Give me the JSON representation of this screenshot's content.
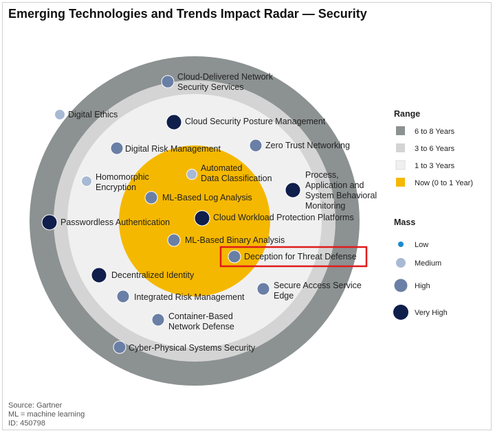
{
  "title": "Emerging Technologies and Trends Impact Radar — Security",
  "colors": {
    "ring_6_8": "#8c9191",
    "ring_3_6": "#d4d4d4",
    "ring_1_3": "#f0f0f0",
    "ring_now": "#f5b800",
    "mass_low": "#1b8ad1",
    "mass_medium": "#a8b9d4",
    "mass_high": "#6a7fa6",
    "mass_very_high": "#0f1e4b",
    "highlight": "#e01b1b"
  },
  "technologies": [
    {
      "label": [
        "Cloud-Delivered Network",
        "Security Services"
      ],
      "mass": "high"
    },
    {
      "label": [
        "Digital Ethics"
      ],
      "mass": "medium"
    },
    {
      "label": [
        "Cloud Security Posture Management"
      ],
      "mass": "very_high"
    },
    {
      "label": [
        "Digital Risk Management"
      ],
      "mass": "high"
    },
    {
      "label": [
        "Zero Trust Networking"
      ],
      "mass": "high"
    },
    {
      "label": [
        "Homomorphic",
        "Encryption"
      ],
      "mass": "medium"
    },
    {
      "label": [
        "Automated",
        "Data Classification"
      ],
      "mass": "medium"
    },
    {
      "label": [
        "Process,",
        "Application and",
        "System Behavioral",
        "Monitoring"
      ],
      "mass": "very_high"
    },
    {
      "label": [
        "ML-Based Log Analysis"
      ],
      "mass": "high"
    },
    {
      "label": [
        "Passwordless Authentication"
      ],
      "mass": "very_high"
    },
    {
      "label": [
        "Cloud Workload Protection Platforms"
      ],
      "mass": "very_high"
    },
    {
      "label": [
        "ML-Based Binary Analysis"
      ],
      "mass": "high"
    },
    {
      "label": [
        "Deception for Threat Defense"
      ],
      "mass": "high",
      "highlighted": true
    },
    {
      "label": [
        "Decentralized Identity"
      ],
      "mass": "very_high"
    },
    {
      "label": [
        "Secure Access Service",
        "Edge"
      ],
      "mass": "high"
    },
    {
      "label": [
        "Integrated Risk Management"
      ],
      "mass": "high"
    },
    {
      "label": [
        "Container-Based",
        "Network Defense"
      ],
      "mass": "high"
    },
    {
      "label": [
        "Cyber-Physical Systems Security"
      ],
      "mass": "high"
    }
  ],
  "legend": {
    "range_title": "Range",
    "range_items": [
      {
        "label": "6 to 8 Years",
        "color_key": "ring_6_8"
      },
      {
        "label": "3 to 6 Years",
        "color_key": "ring_3_6"
      },
      {
        "label": "1 to 3 Years",
        "color_key": "ring_1_3"
      },
      {
        "label": "Now (0 to 1 Year)",
        "color_key": "ring_now"
      }
    ],
    "mass_title": "Mass",
    "mass_items": [
      {
        "label": "Low",
        "key": "low"
      },
      {
        "label": "Medium",
        "key": "medium"
      },
      {
        "label": "High",
        "key": "high"
      },
      {
        "label": "Very High",
        "key": "very_high"
      }
    ]
  },
  "footer": {
    "source": "Source: Gartner",
    "note": "ML = machine learning",
    "id": "ID: 450798"
  }
}
